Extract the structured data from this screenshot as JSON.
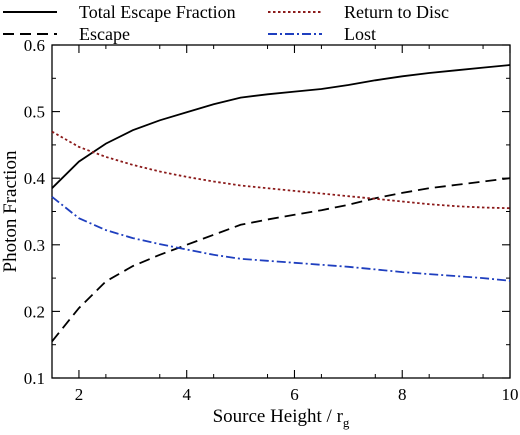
{
  "chart_data": {
    "type": "line",
    "title": "",
    "xlabel_main": "Source Height / r",
    "xlabel_sub": "g",
    "ylabel": "Photon Fraction",
    "xlim": [
      1.5,
      10
    ],
    "ylim": [
      0.1,
      0.6
    ],
    "xticks": [
      2,
      4,
      6,
      8,
      10
    ],
    "yticks": [
      0.1,
      0.2,
      0.3,
      0.4,
      0.5,
      0.6
    ],
    "grid": false,
    "legend_placement": "top, two columns",
    "series": [
      {
        "name": "Total Escape Fraction",
        "color": "#000000",
        "dash": "solid",
        "x": [
          1.5,
          2,
          2.5,
          3,
          3.5,
          4,
          4.5,
          5,
          5.5,
          6,
          6.5,
          7,
          7.5,
          8,
          8.5,
          9,
          9.5,
          10
        ],
        "y": [
          0.385,
          0.425,
          0.452,
          0.472,
          0.487,
          0.499,
          0.511,
          0.521,
          0.526,
          0.53,
          0.534,
          0.54,
          0.547,
          0.553,
          0.558,
          0.562,
          0.566,
          0.57
        ]
      },
      {
        "name": "Escape",
        "color": "#000000",
        "dash": "dashed",
        "x": [
          1.5,
          2,
          2.5,
          3,
          3.5,
          4,
          4.5,
          5,
          5.5,
          6,
          6.5,
          7,
          7.5,
          8,
          8.5,
          9,
          9.5,
          10
        ],
        "y": [
          0.155,
          0.205,
          0.245,
          0.268,
          0.285,
          0.3,
          0.315,
          0.33,
          0.338,
          0.345,
          0.352,
          0.36,
          0.37,
          0.378,
          0.385,
          0.39,
          0.395,
          0.4
        ]
      },
      {
        "name": "Return to Disc",
        "color": "#8b1a1a",
        "dash": "dotted",
        "x": [
          1.5,
          2,
          2.5,
          3,
          3.5,
          4,
          4.5,
          5,
          5.5,
          6,
          6.5,
          7,
          7.5,
          8,
          8.5,
          9,
          9.5,
          10
        ],
        "y": [
          0.47,
          0.447,
          0.432,
          0.42,
          0.41,
          0.402,
          0.395,
          0.389,
          0.385,
          0.381,
          0.377,
          0.373,
          0.369,
          0.365,
          0.361,
          0.358,
          0.356,
          0.355
        ]
      },
      {
        "name": "Lost",
        "color": "#1f3fbf",
        "dash": "dashdot",
        "x": [
          1.5,
          2,
          2.5,
          3,
          3.5,
          4,
          4.5,
          5,
          5.5,
          6,
          6.5,
          7,
          7.5,
          8,
          8.5,
          9,
          9.5,
          10
        ],
        "y": [
          0.372,
          0.34,
          0.322,
          0.31,
          0.301,
          0.293,
          0.285,
          0.279,
          0.276,
          0.273,
          0.27,
          0.267,
          0.263,
          0.259,
          0.256,
          0.253,
          0.25,
          0.246
        ]
      }
    ]
  }
}
